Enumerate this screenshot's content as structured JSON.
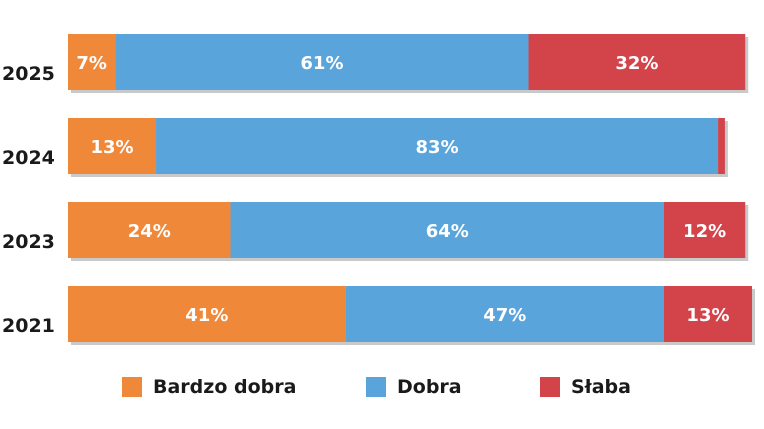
{
  "chart_data": {
    "type": "bar",
    "orientation": "horizontal",
    "stacked": true,
    "categories": [
      "2025",
      "2024",
      "2023",
      "2021"
    ],
    "series": [
      {
        "name": "Bardzo dobra",
        "color": "#f0883a",
        "values": [
          7,
          13,
          24,
          41
        ],
        "labels": [
          "7%",
          "13%",
          "24%",
          "41%"
        ]
      },
      {
        "name": "Dobra",
        "color": "#5aa4dc",
        "values": [
          61,
          83,
          64,
          47
        ],
        "labels": [
          "61%",
          "83%",
          "64%",
          "47%"
        ]
      },
      {
        "name": "Słaba",
        "color": "#d3434a",
        "values": [
          32,
          1,
          12,
          13
        ],
        "labels": [
          "32%",
          "",
          "12%",
          "13%"
        ]
      }
    ],
    "xlim": [
      0,
      101
    ],
    "legend_position": "bottom",
    "grid": false
  }
}
